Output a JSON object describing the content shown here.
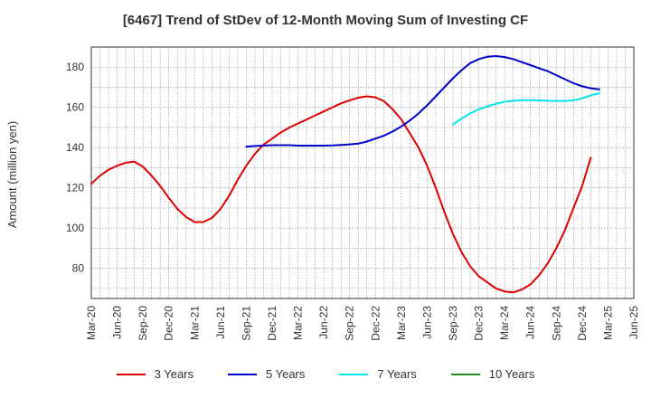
{
  "chart_data": {
    "type": "line",
    "title": "[6467]  Trend of StDev of 12-Month Moving Sum of Investing CF",
    "xlabel": "",
    "ylabel": "Amount (million yen)",
    "ylim": [
      65,
      190
    ],
    "yticks": [
      80,
      100,
      120,
      140,
      160,
      180
    ],
    "x_tick_labels": [
      "Mar-20",
      "Jun-20",
      "Sep-20",
      "Dec-20",
      "Mar-21",
      "Jun-21",
      "Sep-21",
      "Dec-21",
      "Mar-22",
      "Jun-22",
      "Sep-22",
      "Dec-22",
      "Mar-23",
      "Jun-23",
      "Sep-23",
      "Dec-23",
      "Mar-24",
      "Jun-24",
      "Sep-24",
      "Dec-24",
      "Mar-25",
      "Jun-25"
    ],
    "grid": true,
    "legend_position": "bottom",
    "series": [
      {
        "name": "3 Years",
        "color": "#dd0000",
        "start_index": 0,
        "values": [
          122,
          126,
          129,
          131,
          132.5,
          133,
          130.5,
          126,
          121,
          115,
          109.5,
          105.5,
          103,
          103,
          105,
          109.5,
          116,
          124,
          131,
          137,
          141.5,
          144.5,
          147.5,
          150,
          152,
          154,
          156,
          158,
          160,
          162,
          163.5,
          164.8,
          165.5,
          165,
          163,
          159,
          154,
          147,
          140,
          131,
          120,
          108,
          97,
          88,
          81,
          76,
          73,
          70,
          68.5,
          68,
          69.5,
          72,
          76.5,
          82.5,
          90,
          99,
          110,
          121,
          135
        ]
      },
      {
        "name": "5 Years",
        "color": "#0000cc",
        "start_index": 18,
        "values": [
          140.5,
          140.8,
          141,
          141.2,
          141.2,
          141.2,
          141,
          141,
          141,
          141,
          141.1,
          141.3,
          141.6,
          142,
          143,
          144.5,
          146,
          148,
          150.5,
          153.5,
          157,
          161,
          165.5,
          170,
          174.5,
          178.5,
          182,
          184,
          185.2,
          185.5,
          185,
          184,
          182.5,
          181,
          179.5,
          178,
          176,
          174,
          172,
          170.5,
          169.5,
          169
        ]
      },
      {
        "name": "7 Years",
        "color": "#00e5ee",
        "start_index": 42,
        "values": [
          151.5,
          154.5,
          157,
          159,
          160.5,
          161.8,
          162.8,
          163.3,
          163.6,
          163.6,
          163.5,
          163.3,
          163.2,
          163.2,
          163.5,
          164.5,
          166,
          167
        ]
      },
      {
        "name": "10 Years",
        "color": "#228b22",
        "start_index": 0,
        "values": []
      }
    ]
  }
}
